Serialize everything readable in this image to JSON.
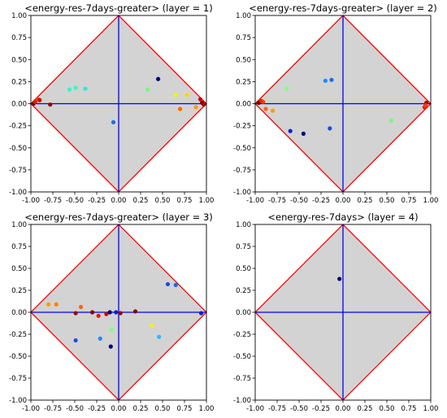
{
  "chart_data": [
    {
      "type": "scatter",
      "title": "<energy-res-7days-greater> (layer = 1)",
      "xlim": [
        -1.0,
        1.0
      ],
      "ylim": [
        -1.0,
        1.0
      ],
      "xticks": [
        "-1.00",
        "-0.75",
        "-0.50",
        "-0.25",
        "0.00",
        "0.25",
        "0.50",
        "0.75",
        "1.00"
      ],
      "yticks": [
        "-1.00",
        "-0.75",
        "-0.50",
        "-0.25",
        "0.00",
        "0.25",
        "0.50",
        "0.75",
        "1.00"
      ],
      "points": [
        {
          "x": -0.97,
          "y": 0.0,
          "color": "#7f0000"
        },
        {
          "x": -0.95,
          "y": 0.02,
          "color": "#e41a00"
        },
        {
          "x": -0.92,
          "y": 0.05,
          "color": "#ff3b00"
        },
        {
          "x": -0.9,
          "y": 0.04,
          "color": "#cc0000"
        },
        {
          "x": -0.78,
          "y": -0.01,
          "color": "#990000"
        },
        {
          "x": -0.56,
          "y": 0.16,
          "color": "#2ff5c7"
        },
        {
          "x": -0.49,
          "y": 0.18,
          "color": "#3ef7b8"
        },
        {
          "x": -0.38,
          "y": 0.17,
          "color": "#33e3d0"
        },
        {
          "x": -0.06,
          "y": -0.21,
          "color": "#1a6cf0"
        },
        {
          "x": 0.33,
          "y": 0.16,
          "color": "#7ef37a"
        },
        {
          "x": 0.45,
          "y": 0.28,
          "color": "#000080"
        },
        {
          "x": 0.65,
          "y": 0.1,
          "color": "#f5f500"
        },
        {
          "x": 0.78,
          "y": 0.1,
          "color": "#ffd500"
        },
        {
          "x": 0.7,
          "y": -0.06,
          "color": "#ff6600"
        },
        {
          "x": 0.88,
          "y": -0.04,
          "color": "#ff9900"
        },
        {
          "x": 0.93,
          "y": 0.05,
          "color": "#cc0000"
        },
        {
          "x": 0.95,
          "y": 0.01,
          "color": "#7f0000"
        },
        {
          "x": 0.97,
          "y": -0.01,
          "color": "#aa0000"
        }
      ]
    },
    {
      "type": "scatter",
      "title": "<energy-res-7days-greater> (layer = 2)",
      "xlim": [
        -1.0,
        1.0
      ],
      "ylim": [
        -1.0,
        1.0
      ],
      "xticks": [
        "-1.00",
        "-0.75",
        "-0.50",
        "-0.25",
        "0.00",
        "0.25",
        "0.50",
        "0.75",
        "1.00"
      ],
      "yticks": [
        "-1.00",
        "-0.75",
        "-0.50",
        "-0.25",
        "0.00",
        "0.25",
        "0.50",
        "0.75",
        "1.00"
      ],
      "points": [
        {
          "x": -0.96,
          "y": 0.01,
          "color": "#7f0000"
        },
        {
          "x": -0.93,
          "y": 0.03,
          "color": "#e41a00"
        },
        {
          "x": -0.91,
          "y": 0.02,
          "color": "#ff3b00"
        },
        {
          "x": -0.88,
          "y": -0.06,
          "color": "#ff6600"
        },
        {
          "x": -0.8,
          "y": -0.08,
          "color": "#ff9900"
        },
        {
          "x": -0.64,
          "y": 0.17,
          "color": "#80ff80"
        },
        {
          "x": -0.6,
          "y": -0.31,
          "color": "#0a1fd4"
        },
        {
          "x": -0.45,
          "y": -0.34,
          "color": "#000080"
        },
        {
          "x": -0.2,
          "y": 0.26,
          "color": "#1a8cff"
        },
        {
          "x": -0.13,
          "y": 0.27,
          "color": "#1a6cf0"
        },
        {
          "x": -0.15,
          "y": -0.28,
          "color": "#1a4ce0"
        },
        {
          "x": 0.55,
          "y": -0.19,
          "color": "#7ef37a"
        },
        {
          "x": 0.93,
          "y": -0.04,
          "color": "#e41a00"
        },
        {
          "x": 0.95,
          "y": 0.01,
          "color": "#aa0000"
        },
        {
          "x": 0.94,
          "y": -0.02,
          "color": "#ff3b00"
        }
      ]
    },
    {
      "type": "scatter",
      "title": "<energy-res-7days-greater> (layer = 3)",
      "xlim": [
        -1.0,
        1.0
      ],
      "ylim": [
        -1.0,
        1.0
      ],
      "xticks": [
        "-1.00",
        "-0.75",
        "-0.50",
        "-0.25",
        "0.00",
        "0.25",
        "0.50",
        "0.75",
        "1.00"
      ],
      "yticks": [
        "-1.00",
        "-0.75",
        "-0.50",
        "-0.25",
        "0.00",
        "0.25",
        "0.50",
        "0.75",
        "1.00"
      ],
      "points": [
        {
          "x": -0.8,
          "y": 0.09,
          "color": "#ff9900"
        },
        {
          "x": -0.71,
          "y": 0.09,
          "color": "#ff7f00"
        },
        {
          "x": -0.49,
          "y": -0.01,
          "color": "#990000"
        },
        {
          "x": -0.43,
          "y": 0.06,
          "color": "#ff6600"
        },
        {
          "x": -0.3,
          "y": 0.0,
          "color": "#7f0000"
        },
        {
          "x": -0.23,
          "y": -0.04,
          "color": "#e41a00"
        },
        {
          "x": -0.14,
          "y": -0.02,
          "color": "#cc0000"
        },
        {
          "x": -0.1,
          "y": 0.0,
          "color": "#000080"
        },
        {
          "x": -0.03,
          "y": 0.0,
          "color": "#0a1fd4"
        },
        {
          "x": 0.02,
          "y": -0.01,
          "color": "#990000"
        },
        {
          "x": 0.19,
          "y": 0.01,
          "color": "#7f0000"
        },
        {
          "x": -0.49,
          "y": -0.32,
          "color": "#1a4ce0"
        },
        {
          "x": -0.21,
          "y": -0.3,
          "color": "#1a8cff"
        },
        {
          "x": -0.08,
          "y": -0.2,
          "color": "#80ff80"
        },
        {
          "x": -0.09,
          "y": -0.39,
          "color": "#000080"
        },
        {
          "x": 0.38,
          "y": -0.15,
          "color": "#f5f500"
        },
        {
          "x": 0.46,
          "y": -0.28,
          "color": "#33b8ff"
        },
        {
          "x": 0.56,
          "y": 0.32,
          "color": "#1a4ce0"
        },
        {
          "x": 0.65,
          "y": 0.31,
          "color": "#1a6cf0"
        },
        {
          "x": 0.94,
          "y": -0.01,
          "color": "#0a1fd4"
        }
      ]
    },
    {
      "type": "scatter",
      "title": "<energy-res-7days> (layer = 4)",
      "xlim": [
        -1.0,
        1.0
      ],
      "ylim": [
        -1.0,
        1.0
      ],
      "xticks": [
        "-1.00",
        "-0.75",
        "-0.50",
        "-0.25",
        "0.00",
        "0.25",
        "0.50",
        "0.75",
        "1.00"
      ],
      "yticks": [
        "-1.00",
        "-0.75",
        "-0.50",
        "-0.25",
        "0.00",
        "0.25",
        "0.50",
        "0.75",
        "1.00"
      ],
      "points": [
        {
          "x": -0.04,
          "y": 0.38,
          "color": "#000080"
        }
      ]
    }
  ]
}
